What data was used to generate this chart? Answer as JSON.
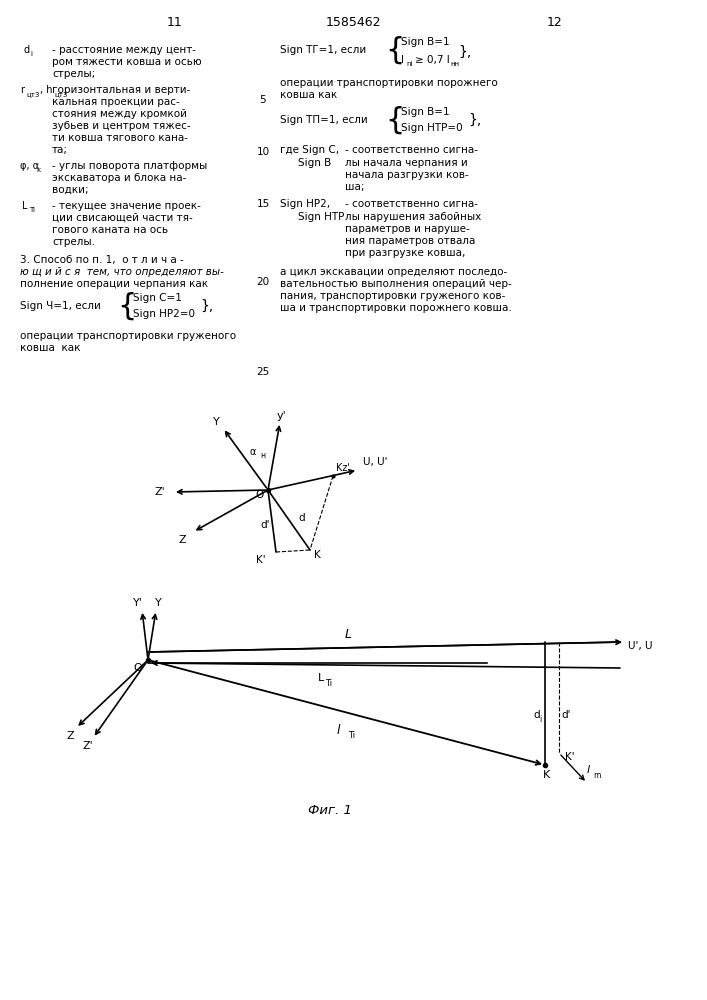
{
  "bg_color": "#ffffff",
  "page_left": "11",
  "page_right": "12",
  "page_center": "1585462",
  "fig_label": "Фиг. 1"
}
